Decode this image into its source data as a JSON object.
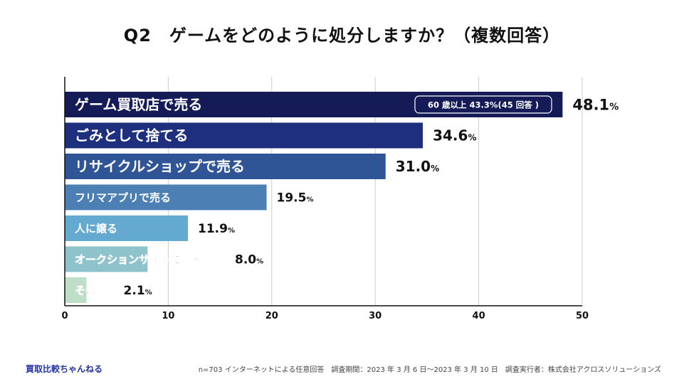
{
  "header": {
    "title": "Q2　ゲームをどのように処分しますか？（複数回答）"
  },
  "chart_data": {
    "type": "bar",
    "orientation": "horizontal",
    "title": "Q2　ゲームをどのように処分しますか？（複数回答）",
    "unit": "%",
    "xlim": [
      0,
      50
    ],
    "xticks": [
      0,
      10,
      20,
      30,
      40,
      50
    ],
    "grid": true,
    "categories": [
      "ゲーム買取店で売る",
      "ごみとして捨てる",
      "リサイクルショップで売る",
      "フリマアプリで売る",
      "人に譲る",
      "オークションサイトで売る",
      "その他"
    ],
    "values": [
      48.1,
      34.6,
      31.0,
      19.5,
      11.9,
      8.0,
      2.1
    ],
    "value_labels": [
      "48.1",
      "34.6",
      "31.0",
      "19.5",
      "11.9",
      "8.0",
      "2.1"
    ],
    "colors": [
      "#141b57",
      "#1e2f7e",
      "#2f5596",
      "#4c7fb3",
      "#64a9cf",
      "#8fc3cb",
      "#bfdec8"
    ],
    "annotation": {
      "text": "60 歳以上 43.3%(45 回答 )",
      "category_index": 0
    }
  },
  "footer": {
    "brand": "買取比較ちゃんねる",
    "note": "n=703 インターネットによる任意回答　調査期間：2023 年 3 月 6 日〜2023 年 3 月 10 日　調査実行者：株式会社アクロスソリューションズ"
  }
}
